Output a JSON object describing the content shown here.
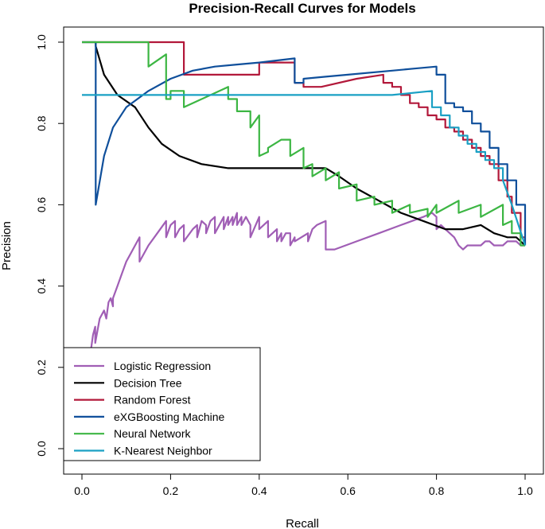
{
  "chart_data": {
    "type": "line",
    "title": "Precision-Recall Curves for Models",
    "xlabel": "Recall",
    "ylabel": "Precision",
    "xlim": [
      0,
      1
    ],
    "ylim": [
      0,
      1
    ],
    "xticks": [
      "0.0",
      "0.2",
      "0.4",
      "0.6",
      "0.8",
      "1.0"
    ],
    "yticks": [
      "0.0",
      "0.2",
      "0.4",
      "0.6",
      "0.8",
      "1.0"
    ],
    "grid": false,
    "legend_position": "bottom-left",
    "series": [
      {
        "name": "Logistic Regression",
        "color": "#a05eb5",
        "x": [
          0.0,
          0.02,
          0.025,
          0.03,
          0.03,
          0.04,
          0.05,
          0.055,
          0.06,
          0.065,
          0.07,
          0.07,
          0.08,
          0.09,
          0.1,
          0.11,
          0.12,
          0.13,
          0.13,
          0.15,
          0.17,
          0.19,
          0.19,
          0.2,
          0.21,
          0.21,
          0.22,
          0.23,
          0.23,
          0.25,
          0.26,
          0.26,
          0.27,
          0.28,
          0.28,
          0.29,
          0.3,
          0.3,
          0.32,
          0.32,
          0.33,
          0.33,
          0.34,
          0.34,
          0.35,
          0.35,
          0.36,
          0.36,
          0.37,
          0.38,
          0.38,
          0.4,
          0.4,
          0.42,
          0.42,
          0.44,
          0.44,
          0.45,
          0.45,
          0.46,
          0.47,
          0.47,
          0.48,
          0.48,
          0.51,
          0.51,
          0.52,
          0.53,
          0.55,
          0.55,
          0.57,
          0.62,
          0.67,
          0.72,
          0.77,
          0.79,
          0.8,
          0.8,
          0.81,
          0.82,
          0.83,
          0.84,
          0.85,
          0.86,
          0.87,
          0.88,
          0.9,
          0.91,
          0.92,
          0.93,
          0.95,
          0.96,
          0.97,
          0.98,
          0.99,
          1.0
        ],
        "y": [
          0.2,
          0.24,
          0.28,
          0.3,
          0.26,
          0.32,
          0.34,
          0.32,
          0.36,
          0.37,
          0.35,
          0.37,
          0.4,
          0.43,
          0.46,
          0.48,
          0.5,
          0.52,
          0.46,
          0.5,
          0.53,
          0.56,
          0.52,
          0.55,
          0.56,
          0.52,
          0.54,
          0.55,
          0.51,
          0.54,
          0.55,
          0.52,
          0.56,
          0.55,
          0.53,
          0.56,
          0.57,
          0.53,
          0.57,
          0.54,
          0.57,
          0.55,
          0.57,
          0.55,
          0.58,
          0.55,
          0.57,
          0.55,
          0.57,
          0.55,
          0.52,
          0.57,
          0.54,
          0.56,
          0.52,
          0.54,
          0.51,
          0.53,
          0.51,
          0.53,
          0.53,
          0.5,
          0.52,
          0.51,
          0.53,
          0.51,
          0.54,
          0.55,
          0.56,
          0.49,
          0.49,
          0.51,
          0.53,
          0.55,
          0.57,
          0.58,
          0.57,
          0.54,
          0.55,
          0.54,
          0.53,
          0.52,
          0.5,
          0.49,
          0.5,
          0.5,
          0.5,
          0.51,
          0.51,
          0.5,
          0.5,
          0.51,
          0.51,
          0.51,
          0.5,
          0.5
        ]
      },
      {
        "name": "Decision Tree",
        "color": "#000000",
        "x": [
          0.031,
          0.031,
          0.05,
          0.08,
          0.12,
          0.15,
          0.18,
          0.22,
          0.27,
          0.33,
          0.4,
          0.45,
          0.5,
          0.55,
          0.58,
          0.62,
          0.67,
          0.72,
          0.77,
          0.82,
          0.86,
          0.9,
          0.93,
          0.96,
          0.98,
          1.0
        ],
        "y": [
          1.0,
          0.99,
          0.92,
          0.87,
          0.84,
          0.79,
          0.75,
          0.72,
          0.7,
          0.69,
          0.69,
          0.69,
          0.69,
          0.69,
          0.67,
          0.64,
          0.61,
          0.58,
          0.56,
          0.54,
          0.54,
          0.55,
          0.53,
          0.52,
          0.52,
          0.5
        ]
      },
      {
        "name": "Random Forest",
        "color": "#b2183a",
        "x": [
          0.0,
          0.15,
          0.15,
          0.23,
          0.23,
          0.4,
          0.4,
          0.48,
          0.48,
          0.5,
          0.5,
          0.54,
          0.54,
          0.62,
          0.68,
          0.68,
          0.7,
          0.7,
          0.72,
          0.72,
          0.74,
          0.74,
          0.76,
          0.76,
          0.78,
          0.78,
          0.8,
          0.8,
          0.82,
          0.82,
          0.84,
          0.84,
          0.86,
          0.86,
          0.88,
          0.88,
          0.9,
          0.9,
          0.92,
          0.92,
          0.94,
          0.94,
          0.96,
          0.96,
          0.97,
          0.97,
          0.99,
          0.99,
          1.0
        ],
        "y": [
          1.0,
          1.0,
          1.0,
          1.0,
          0.92,
          0.92,
          0.95,
          0.95,
          0.9,
          0.9,
          0.89,
          0.89,
          0.89,
          0.91,
          0.92,
          0.9,
          0.9,
          0.89,
          0.89,
          0.87,
          0.87,
          0.85,
          0.85,
          0.84,
          0.84,
          0.82,
          0.82,
          0.81,
          0.81,
          0.79,
          0.79,
          0.78,
          0.78,
          0.76,
          0.76,
          0.74,
          0.74,
          0.72,
          0.72,
          0.7,
          0.7,
          0.66,
          0.66,
          0.62,
          0.62,
          0.58,
          0.58,
          0.52,
          0.52
        ]
      },
      {
        "name": "eXGBoosting Machine",
        "color": "#0f4f9b",
        "x": [
          0.0,
          0.031,
          0.031,
          0.031,
          0.05,
          0.07,
          0.1,
          0.15,
          0.2,
          0.25,
          0.3,
          0.35,
          0.4,
          0.48,
          0.48,
          0.5,
          0.5,
          0.55,
          0.6,
          0.7,
          0.75,
          0.8,
          0.8,
          0.82,
          0.82,
          0.84,
          0.84,
          0.86,
          0.86,
          0.88,
          0.88,
          0.9,
          0.9,
          0.92,
          0.92,
          0.94,
          0.94,
          0.96,
          0.96,
          0.98,
          0.98,
          1.0,
          1.0
        ],
        "y": [
          1.0,
          1.0,
          1.0,
          0.6,
          0.72,
          0.79,
          0.84,
          0.88,
          0.91,
          0.93,
          0.94,
          0.945,
          0.95,
          0.96,
          0.9,
          0.9,
          0.91,
          0.915,
          0.92,
          0.93,
          0.935,
          0.94,
          0.92,
          0.92,
          0.85,
          0.85,
          0.84,
          0.84,
          0.83,
          0.83,
          0.8,
          0.8,
          0.78,
          0.78,
          0.74,
          0.74,
          0.7,
          0.7,
          0.66,
          0.66,
          0.6,
          0.6,
          0.5
        ]
      },
      {
        "name": "Neural Network",
        "color": "#3cb643",
        "x": [
          0.0,
          0.15,
          0.15,
          0.19,
          0.19,
          0.2,
          0.2,
          0.23,
          0.23,
          0.33,
          0.33,
          0.35,
          0.35,
          0.38,
          0.38,
          0.4,
          0.4,
          0.42,
          0.42,
          0.45,
          0.47,
          0.47,
          0.5,
          0.5,
          0.52,
          0.52,
          0.55,
          0.55,
          0.58,
          0.58,
          0.62,
          0.62,
          0.66,
          0.66,
          0.7,
          0.7,
          0.74,
          0.74,
          0.78,
          0.78,
          0.8,
          0.8,
          0.85,
          0.85,
          0.9,
          0.9,
          0.95,
          0.95,
          0.97,
          0.97,
          0.99,
          0.99,
          1.0
        ],
        "y": [
          1.0,
          1.0,
          0.94,
          0.97,
          0.86,
          0.86,
          0.88,
          0.88,
          0.84,
          0.89,
          0.86,
          0.86,
          0.83,
          0.83,
          0.79,
          0.82,
          0.72,
          0.73,
          0.74,
          0.76,
          0.76,
          0.72,
          0.74,
          0.69,
          0.7,
          0.67,
          0.69,
          0.66,
          0.68,
          0.64,
          0.65,
          0.61,
          0.62,
          0.6,
          0.61,
          0.58,
          0.6,
          0.58,
          0.59,
          0.57,
          0.6,
          0.58,
          0.61,
          0.58,
          0.6,
          0.57,
          0.6,
          0.55,
          0.56,
          0.53,
          0.53,
          0.5,
          0.5
        ]
      },
      {
        "name": "K-Nearest Neighbor",
        "color": "#1aa0c4",
        "x": [
          0.0,
          0.7,
          0.79,
          0.79,
          0.81,
          0.81,
          0.83,
          0.83,
          0.85,
          0.85,
          0.87,
          0.87,
          0.89,
          0.89,
          0.91,
          0.91,
          0.93,
          0.93,
          0.95,
          0.95,
          0.97,
          1.0
        ],
        "y": [
          0.87,
          0.87,
          0.88,
          0.84,
          0.84,
          0.82,
          0.82,
          0.79,
          0.79,
          0.77,
          0.77,
          0.75,
          0.75,
          0.73,
          0.73,
          0.71,
          0.71,
          0.69,
          0.69,
          0.66,
          0.6,
          0.5
        ]
      }
    ]
  }
}
